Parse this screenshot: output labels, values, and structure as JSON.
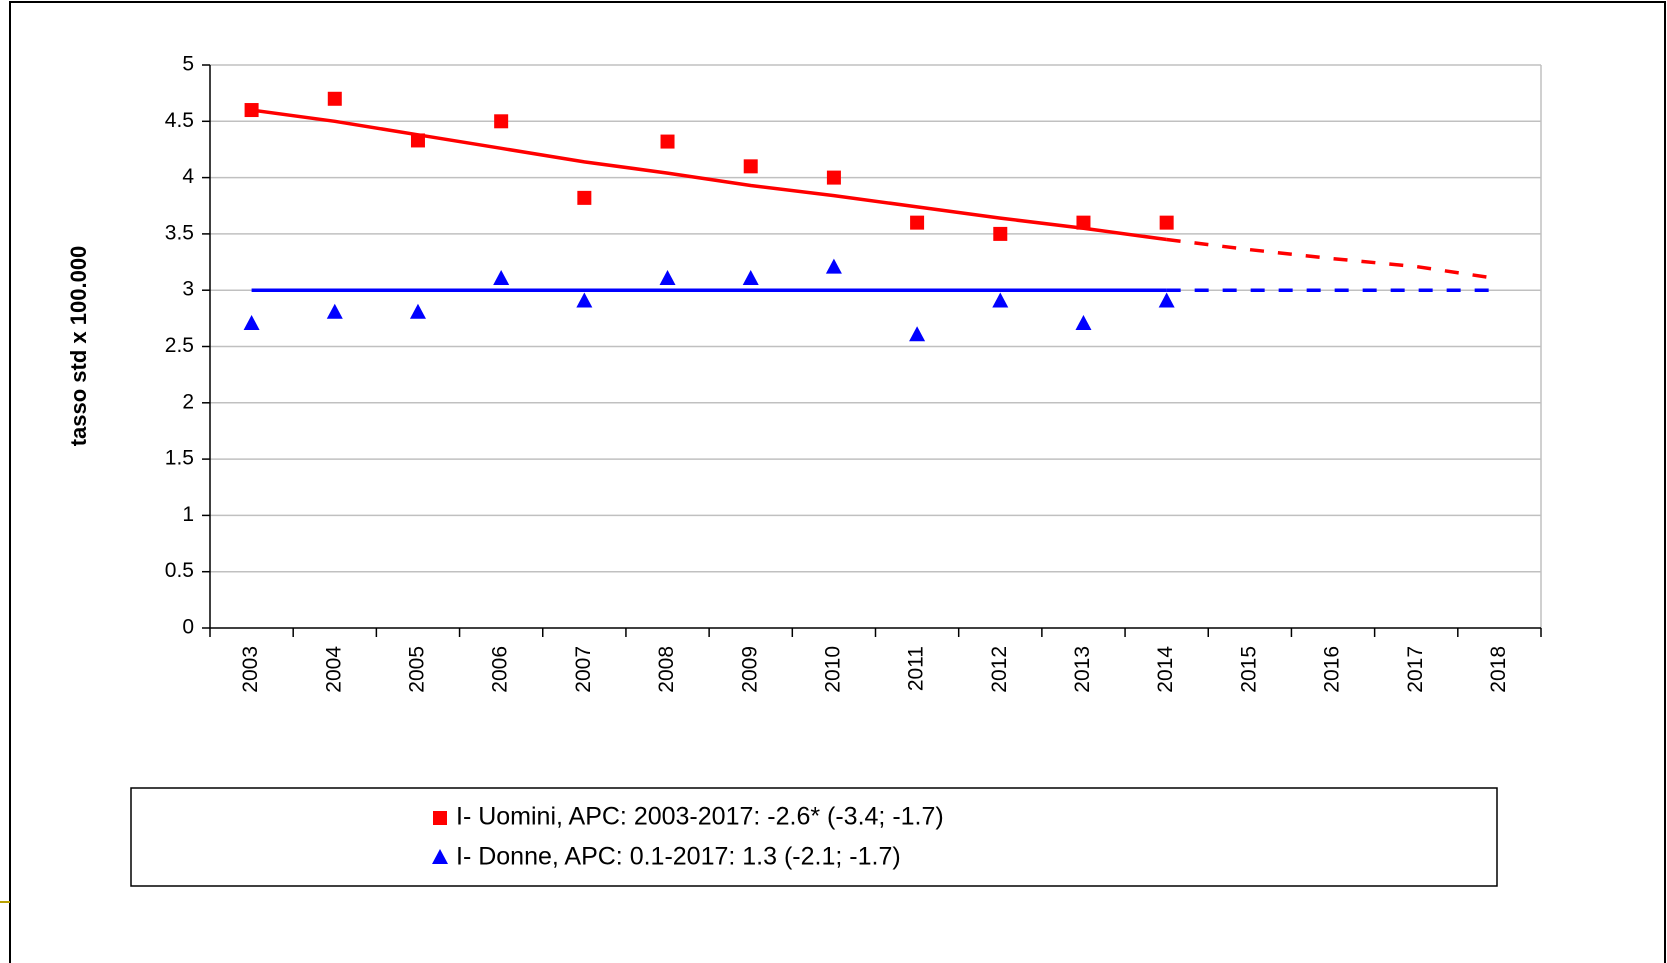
{
  "chart_data": {
    "type": "scatter",
    "y_label": "tasso std x 100.000",
    "categories": [
      "2003",
      "2004",
      "2005",
      "2006",
      "2007",
      "2008",
      "2009",
      "2010",
      "2011",
      "2012",
      "2013",
      "2014",
      "2015",
      "2016",
      "2017",
      "2018"
    ],
    "series": [
      {
        "name": "I- Uomini, APC: 2003-2017: -2.6* (-3.4; -1.7)",
        "color": "#ff0000",
        "marker": "square",
        "values": [
          4.6,
          4.7,
          4.33,
          4.5,
          3.82,
          4.32,
          4.1,
          4.0,
          3.6,
          3.5,
          3.6,
          3.6,
          null,
          null,
          null,
          null
        ],
        "trend": [
          4.6,
          4.5,
          4.38,
          4.26,
          4.14,
          4.04,
          3.93,
          3.84,
          3.74,
          3.64,
          3.55,
          3.45,
          null,
          null,
          null,
          null
        ],
        "projection": [
          null,
          null,
          null,
          null,
          null,
          null,
          null,
          null,
          null,
          null,
          null,
          3.45,
          3.36,
          3.28,
          3.21,
          3.1
        ]
      },
      {
        "name": "I- Donne, APC: 0.1-2017: 1.3 (-2.1; -1.7)",
        "color": "#0000ff",
        "marker": "triangle",
        "values": [
          2.7,
          2.8,
          2.8,
          3.1,
          2.9,
          3.1,
          3.1,
          3.2,
          2.6,
          2.9,
          2.7,
          2.9,
          null,
          null,
          null,
          null
        ],
        "trend": [
          3.0,
          3.0,
          3.0,
          3.0,
          3.0,
          3.0,
          3.0,
          3.0,
          3.0,
          3.0,
          3.0,
          3.0,
          null,
          null,
          null,
          null
        ],
        "projection": [
          null,
          null,
          null,
          null,
          null,
          null,
          null,
          null,
          null,
          null,
          null,
          3.0,
          3.0,
          3.0,
          3.0,
          3.0
        ]
      }
    ],
    "ylim": [
      0,
      5
    ],
    "yticks": [
      0,
      0.5,
      1,
      1.5,
      2,
      2.5,
      3,
      3.5,
      4,
      4.5,
      5
    ],
    "grid": true,
    "legend": "bottom"
  }
}
